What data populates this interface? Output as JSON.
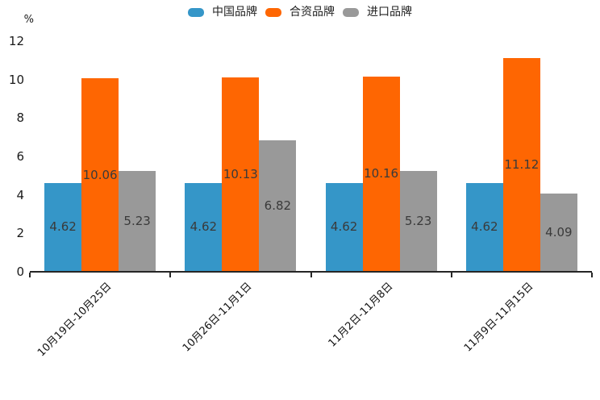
{
  "chart_data": {
    "type": "bar",
    "title": "",
    "ylabel": "%",
    "xlabel": "",
    "categories": [
      "10月19日-10月25日",
      "10月26日-11月1日",
      "11月2日-11月8日",
      "11月9日-11月15日"
    ],
    "series": [
      {
        "name": "中国品牌",
        "color": "#3596C8",
        "values": [
          4.62,
          4.62,
          4.62,
          4.62
        ]
      },
      {
        "name": "合资品牌",
        "color": "#FE6602",
        "values": [
          10.06,
          10.13,
          10.16,
          11.12
        ]
      },
      {
        "name": "进口品牌",
        "color": "#999999",
        "values": [
          5.23,
          6.82,
          5.23,
          4.09
        ]
      }
    ],
    "ylim": [
      0,
      12
    ],
    "yticks": [
      0,
      2,
      4,
      6,
      8,
      10,
      12
    ],
    "grid": false,
    "legend_position": "top-center",
    "value_label_position": "inside-center",
    "xtick_rotation_deg": 45,
    "axis_color": "#262626",
    "tick_label_color": "#1A1A1A",
    "value_label_color": "#3A3A3A"
  }
}
